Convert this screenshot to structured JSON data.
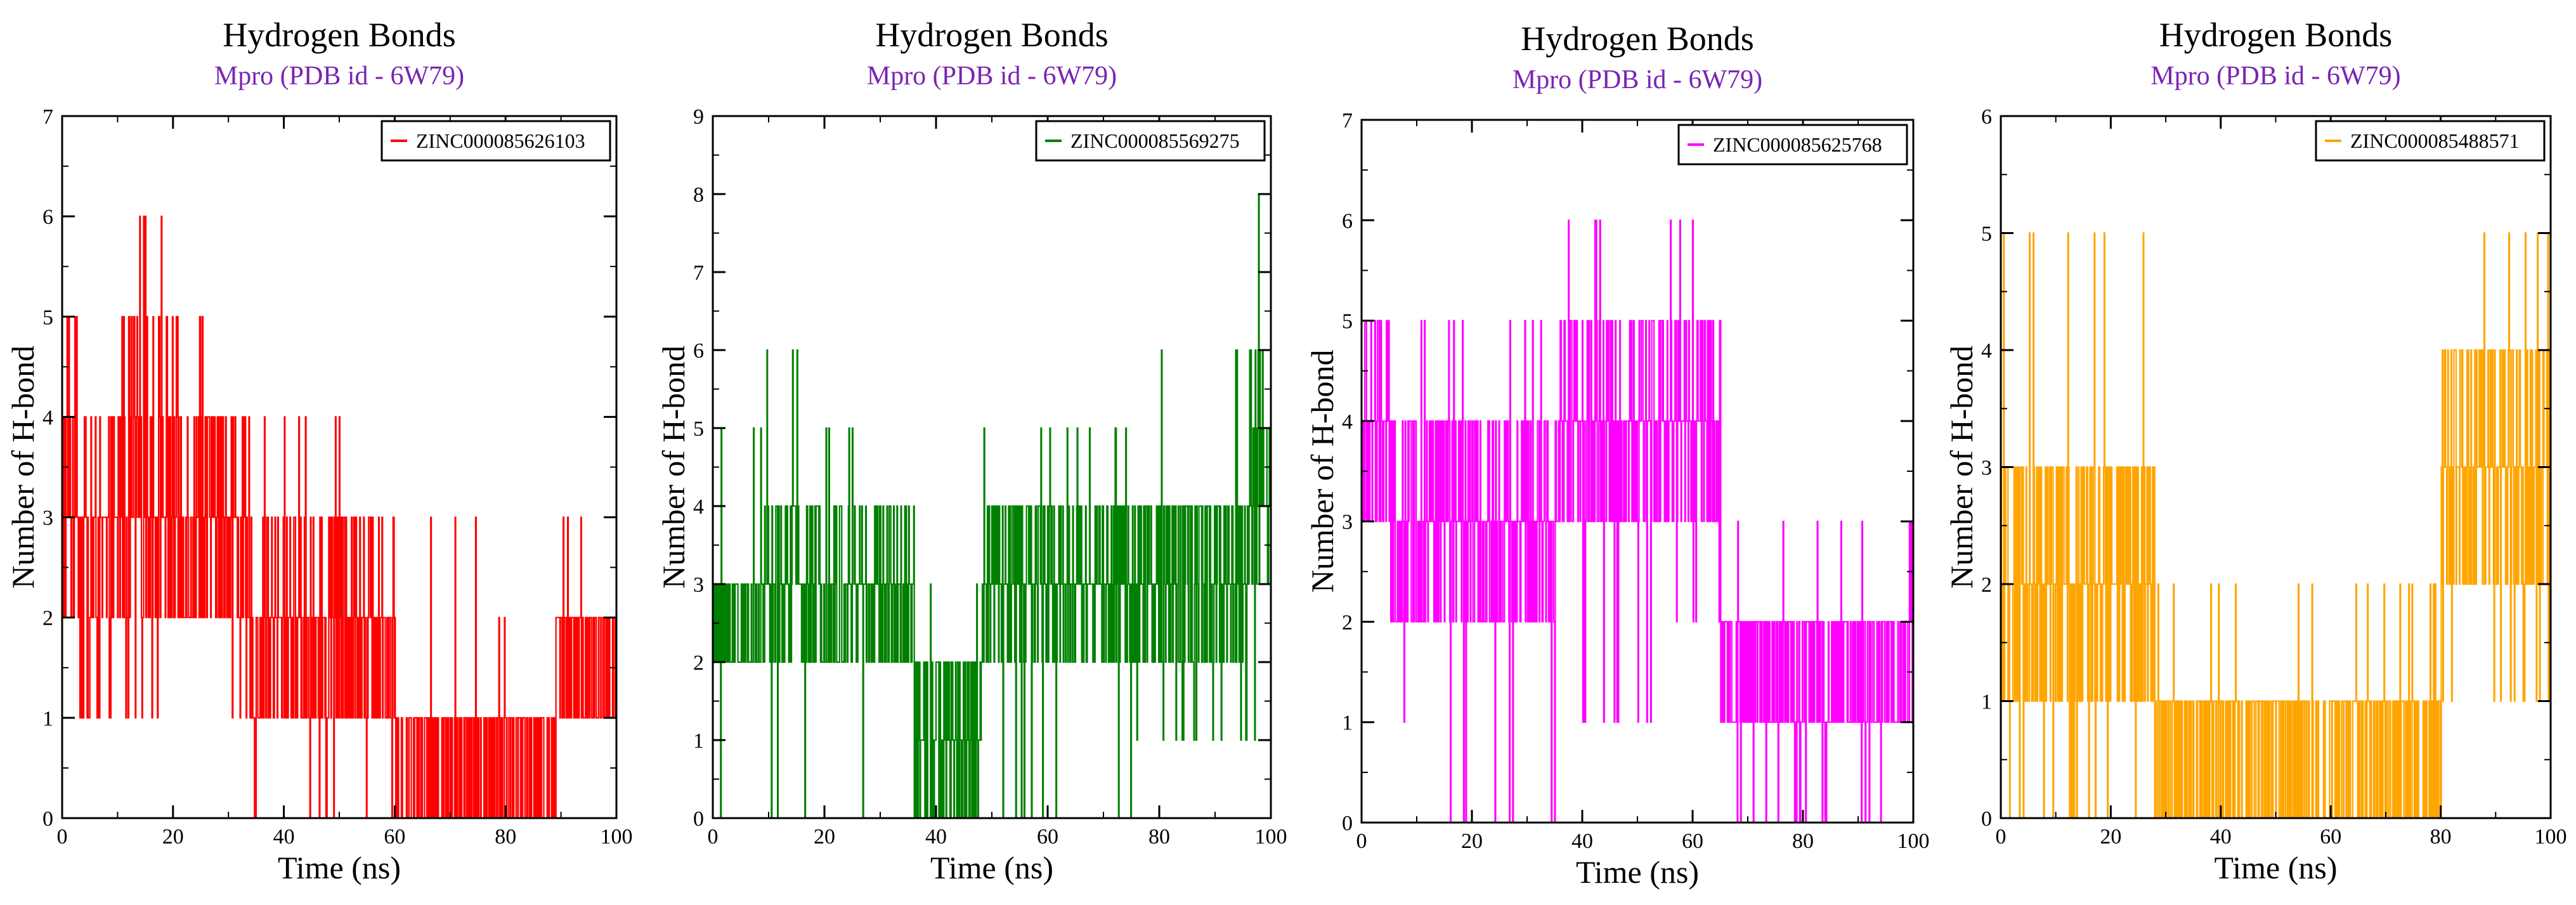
{
  "chart_data": [
    {
      "type": "line",
      "title": "Hydrogen Bonds",
      "subtitle": "Mpro (PDB id - 6W79)",
      "subtitle_color": "#7a24b3",
      "xlabel": "Time (ns)",
      "ylabel": "Number of H-bond",
      "xlim": [
        0,
        100
      ],
      "ylim": [
        0,
        7
      ],
      "xticks": [
        "0",
        "20",
        "40",
        "60",
        "80",
        "100"
      ],
      "yticks": [
        "0",
        "1",
        "2",
        "3",
        "4",
        "5",
        "6",
        "7"
      ],
      "legend_position": "top-right",
      "series": [
        {
          "name": "ZINC000085626103",
          "color": "#ff0000",
          "segments": [
            {
              "from": 0,
              "to": 3,
              "levels": [
                2,
                3,
                4,
                5
              ],
              "weights": [
                3,
                4,
                2,
                2
              ],
              "spike_low": 0,
              "spike_high": 5
            },
            {
              "from": 3,
              "to": 10,
              "levels": [
                1,
                2,
                3,
                4
              ],
              "weights": [
                1,
                4,
                4,
                1
              ],
              "spike_low": 1,
              "spike_high": 4
            },
            {
              "from": 10,
              "to": 20,
              "levels": [
                2,
                3,
                4,
                5
              ],
              "weights": [
                3,
                4,
                3,
                1
              ],
              "spike_low": 1,
              "spike_high": 6
            },
            {
              "from": 20,
              "to": 33,
              "levels": [
                2,
                3,
                4
              ],
              "weights": [
                4,
                4,
                3
              ],
              "spike_low": 1,
              "spike_high": 5
            },
            {
              "from": 33,
              "to": 48,
              "levels": [
                1,
                2,
                3
              ],
              "weights": [
                4,
                4,
                2
              ],
              "spike_low": 0,
              "spike_high": 4
            },
            {
              "from": 48,
              "to": 60,
              "levels": [
                1,
                2,
                3
              ],
              "weights": [
                3,
                4,
                3
              ],
              "spike_low": 0,
              "spike_high": 4
            },
            {
              "from": 60,
              "to": 78,
              "levels": [
                0,
                1
              ],
              "weights": [
                4,
                4
              ],
              "spike_low": 0,
              "spike_high": 3
            },
            {
              "from": 78,
              "to": 89,
              "levels": [
                0,
                1
              ],
              "weights": [
                3,
                4
              ],
              "spike_low": 0,
              "spike_high": 2
            },
            {
              "from": 89,
              "to": 100,
              "levels": [
                1,
                2
              ],
              "weights": [
                3,
                4
              ],
              "spike_low": 0,
              "spike_high": 3
            }
          ]
        }
      ]
    },
    {
      "type": "line",
      "title": "Hydrogen Bonds",
      "subtitle": "Mpro (PDB id - 6W79)",
      "subtitle_color": "#7a24b3",
      "xlabel": "Time (ns)",
      "ylabel": "Number of H-bond",
      "xlim": [
        0,
        100
      ],
      "ylim": [
        0,
        9
      ],
      "xticks": [
        "0",
        "20",
        "40",
        "60",
        "80",
        "100"
      ],
      "yticks": [
        "0",
        "1",
        "2",
        "3",
        "4",
        "5",
        "6",
        "7",
        "8",
        "9"
      ],
      "legend_position": "top-right",
      "series": [
        {
          "name": "ZINC000085569275",
          "color": "#008000",
          "segments": [
            {
              "from": 0,
              "to": 9,
              "levels": [
                2,
                3
              ],
              "weights": [
                4,
                4
              ],
              "spike_low": 0,
              "spike_high": 5
            },
            {
              "from": 9,
              "to": 20,
              "levels": [
                2,
                3,
                4
              ],
              "weights": [
                3,
                4,
                3
              ],
              "spike_low": 0,
              "spike_high": 6
            },
            {
              "from": 20,
              "to": 36,
              "levels": [
                2,
                3,
                4
              ],
              "weights": [
                3,
                4,
                3
              ],
              "spike_low": 0,
              "spike_high": 5
            },
            {
              "from": 36,
              "to": 48,
              "levels": [
                0,
                1,
                2
              ],
              "weights": [
                3,
                4,
                3
              ],
              "spike_low": 0,
              "spike_high": 3
            },
            {
              "from": 48,
              "to": 75,
              "levels": [
                2,
                3,
                4
              ],
              "weights": [
                3,
                4,
                3
              ],
              "spike_low": 0,
              "spike_high": 5
            },
            {
              "from": 75,
              "to": 96,
              "levels": [
                2,
                3,
                4
              ],
              "weights": [
                3,
                4,
                4
              ],
              "spike_low": 1,
              "spike_high": 6
            },
            {
              "from": 96,
              "to": 100,
              "levels": [
                3,
                4,
                5,
                6
              ],
              "weights": [
                2,
                3,
                2,
                1
              ],
              "spike_low": 1,
              "spike_high": 8
            }
          ]
        }
      ]
    },
    {
      "type": "line",
      "title": "Hydrogen Bonds",
      "subtitle": "Mpro (PDB id - 6W79)",
      "subtitle_color": "#7a24b3",
      "xlabel": "Time (ns)",
      "ylabel": "Number of H-bond",
      "xlim": [
        0,
        100
      ],
      "ylim": [
        0,
        7
      ],
      "xticks": [
        "0",
        "20",
        "40",
        "60",
        "80",
        "100"
      ],
      "yticks": [
        "0",
        "1",
        "2",
        "3",
        "4",
        "5",
        "6",
        "7"
      ],
      "legend_position": "top-right",
      "series": [
        {
          "name": "ZINC000085625768",
          "color": "#ff00ff",
          "segments": [
            {
              "from": 0,
              "to": 5,
              "levels": [
                3,
                4,
                5
              ],
              "weights": [
                4,
                4,
                3
              ],
              "spike_low": 0,
              "spike_high": 5
            },
            {
              "from": 5,
              "to": 16,
              "levels": [
                2,
                3,
                4
              ],
              "weights": [
                3,
                4,
                4
              ],
              "spike_low": 1,
              "spike_high": 5
            },
            {
              "from": 16,
              "to": 35,
              "levels": [
                2,
                3,
                4
              ],
              "weights": [
                4,
                4,
                3
              ],
              "spike_low": 0,
              "spike_high": 5
            },
            {
              "from": 35,
              "to": 55,
              "levels": [
                3,
                4,
                5
              ],
              "weights": [
                4,
                4,
                2
              ],
              "spike_low": 1,
              "spike_high": 6
            },
            {
              "from": 55,
              "to": 65,
              "levels": [
                3,
                4,
                5
              ],
              "weights": [
                3,
                4,
                3
              ],
              "spike_low": 2,
              "spike_high": 6
            },
            {
              "from": 65,
              "to": 82,
              "levels": [
                1,
                2
              ],
              "weights": [
                4,
                4
              ],
              "spike_low": 0,
              "spike_high": 3
            },
            {
              "from": 82,
              "to": 100,
              "levels": [
                1,
                2
              ],
              "weights": [
                4,
                4
              ],
              "spike_low": 0,
              "spike_high": 3
            }
          ]
        }
      ]
    },
    {
      "type": "line",
      "title": "Hydrogen Bonds",
      "subtitle": "Mpro (PDB id - 6W79)",
      "subtitle_color": "#7a24b3",
      "xlabel": "Time (ns)",
      "ylabel": "Number of H-bond",
      "xlim": [
        0,
        100
      ],
      "ylim": [
        0,
        6
      ],
      "xticks": [
        "0",
        "20",
        "40",
        "60",
        "80",
        "100"
      ],
      "yticks": [
        "0",
        "1",
        "2",
        "3",
        "4",
        "5",
        "6"
      ],
      "legend_position": "top-right",
      "series": [
        {
          "name": "ZINC000085488571",
          "color": "#ffa500",
          "segments": [
            {
              "from": 0,
              "to": 10,
              "levels": [
                1,
                2,
                3
              ],
              "weights": [
                4,
                4,
                3
              ],
              "spike_low": 0,
              "spike_high": 5
            },
            {
              "from": 10,
              "to": 28,
              "levels": [
                1,
                2,
                3
              ],
              "weights": [
                3,
                4,
                3
              ],
              "spike_low": 0,
              "spike_high": 5
            },
            {
              "from": 28,
              "to": 47,
              "levels": [
                0,
                1
              ],
              "weights": [
                4,
                4
              ],
              "spike_low": 0,
              "spike_high": 2
            },
            {
              "from": 47,
              "to": 80,
              "levels": [
                0,
                1
              ],
              "weights": [
                4,
                4
              ],
              "spike_low": 0,
              "spike_high": 2
            },
            {
              "from": 80,
              "to": 86,
              "levels": [
                2,
                3,
                4
              ],
              "weights": [
                3,
                3,
                2
              ],
              "spike_low": 1,
              "spike_high": 5
            },
            {
              "from": 86,
              "to": 100,
              "levels": [
                2,
                3,
                4
              ],
              "weights": [
                3,
                4,
                3
              ],
              "spike_low": 1,
              "spike_high": 5
            }
          ]
        }
      ]
    }
  ]
}
